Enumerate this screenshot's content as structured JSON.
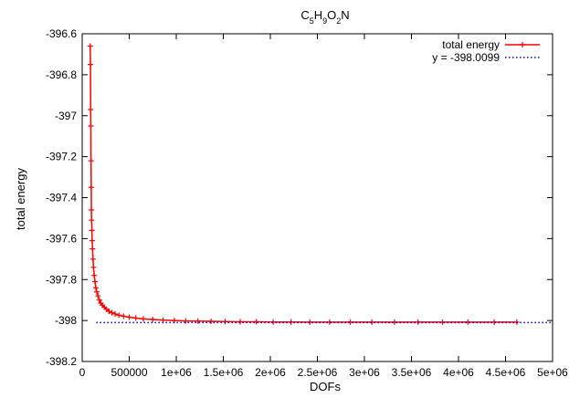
{
  "chart_data": {
    "type": "line",
    "title": {
      "base": "C",
      "parts": [
        {
          "t": "C",
          "sub": false
        },
        {
          "t": "5",
          "sub": true
        },
        {
          "t": "H",
          "sub": false
        },
        {
          "t": "9",
          "sub": true
        },
        {
          "t": "O",
          "sub": false
        },
        {
          "t": "2",
          "sub": true
        },
        {
          "t": "N",
          "sub": false
        }
      ]
    },
    "xlabel": "DOFs",
    "ylabel": "total energy",
    "xlim": [
      0,
      5000000
    ],
    "ylim": [
      -398.2,
      -396.6
    ],
    "xticks": [
      0,
      500000,
      1000000,
      1500000,
      2000000,
      2500000,
      3000000,
      3500000,
      4000000,
      4500000,
      5000000
    ],
    "xtick_labels": [
      "0",
      "500000",
      "1e+06",
      "1.5e+06",
      "2e+06",
      "2.5e+06",
      "3e+06",
      "3.5e+06",
      "4e+06",
      "4.5e+06",
      "5e+06"
    ],
    "yticks": [
      -396.6,
      -396.8,
      -397.0,
      -397.2,
      -397.4,
      -397.6,
      -397.8,
      -398.0,
      -398.2
    ],
    "ytick_labels": [
      "-396.6",
      "-396.8",
      "-397",
      "-397.2",
      "-397.4",
      "-397.6",
      "-397.8",
      "-398",
      "-398.2"
    ],
    "grid": false,
    "legend": "top-right",
    "series": [
      {
        "name": "total energy",
        "color": "#ff0000",
        "style": "line-with-plus-markers",
        "x": [
          85000,
          88000,
          90000,
          92000,
          94000,
          96000,
          98000,
          100000,
          103000,
          106000,
          110000,
          115000,
          120000,
          128000,
          136000,
          145000,
          155000,
          168000,
          182000,
          198000,
          215000,
          235000,
          258000,
          285000,
          315000,
          350000,
          390000,
          440000,
          500000,
          570000,
          650000,
          750000,
          860000,
          980000,
          1100000,
          1230000,
          1370000,
          1520000,
          1680000,
          1850000,
          2030000,
          2220000,
          2420000,
          2630000,
          2850000,
          3080000,
          3320000,
          3570000,
          3830000,
          4100000,
          4380000,
          4620000
        ],
        "y": [
          -396.66,
          -396.75,
          -396.97,
          -397.05,
          -397.22,
          -397.35,
          -397.46,
          -397.51,
          -397.56,
          -397.61,
          -397.65,
          -397.7,
          -397.74,
          -397.78,
          -397.81,
          -397.84,
          -397.86,
          -397.88,
          -397.9,
          -397.915,
          -397.925,
          -397.935,
          -397.945,
          -397.955,
          -397.962,
          -397.968,
          -397.974,
          -397.979,
          -397.984,
          -397.988,
          -397.992,
          -397.995,
          -397.998,
          -398.0,
          -398.002,
          -398.003,
          -398.004,
          -398.005,
          -398.006,
          -398.006,
          -398.007,
          -398.007,
          -398.008,
          -398.008,
          -398.008,
          -398.008,
          -398.008,
          -398.008,
          -398.008,
          -398.008,
          -398.008,
          -398.008
        ]
      },
      {
        "name": "y =  -398.0099",
        "color": "#0000cc",
        "style": "dotted",
        "x": [
          150000,
          5000000
        ],
        "y": [
          -398.0099,
          -398.0099
        ]
      }
    ]
  }
}
